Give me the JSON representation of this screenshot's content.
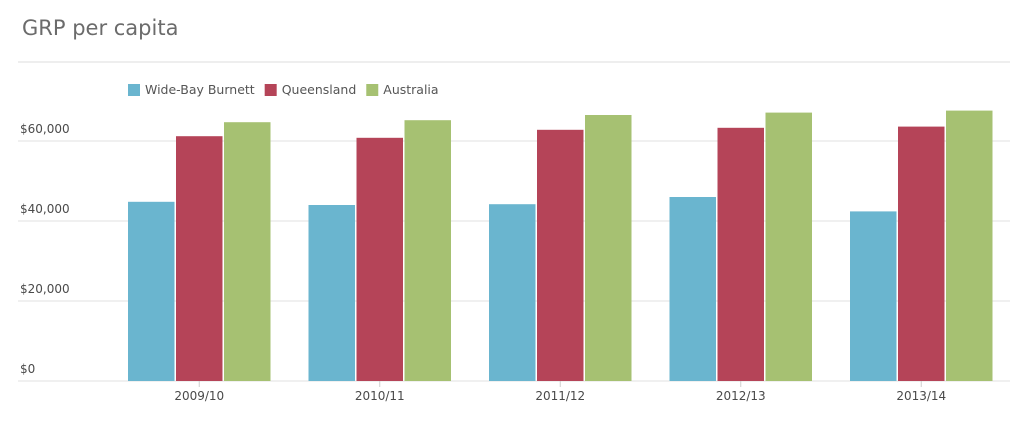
{
  "chart_data": {
    "type": "bar",
    "title": "GRP per capita",
    "xlabel": "",
    "ylabel": "",
    "categories": [
      "2009/10",
      "2010/11",
      "2011/12",
      "2012/13",
      "2013/14"
    ],
    "series": [
      {
        "name": "Wide-Bay Burnett",
        "color": "#6ab5cf",
        "values": [
          44800,
          44000,
          44200,
          46000,
          42400
        ]
      },
      {
        "name": "Queensland",
        "color": "#b54458",
        "values": [
          61200,
          60800,
          62800,
          63300,
          63600
        ]
      },
      {
        "name": "Australia",
        "color": "#a6c172",
        "values": [
          64700,
          65200,
          66500,
          67100,
          67600
        ]
      }
    ],
    "ylim": [
      0,
      80000
    ],
    "yticks": [
      0,
      20000,
      40000,
      60000
    ],
    "ytick_labels": [
      "$0",
      "$20,000",
      "$40,000",
      "$60,000"
    ],
    "grid": true,
    "legend_position": "top-left"
  }
}
